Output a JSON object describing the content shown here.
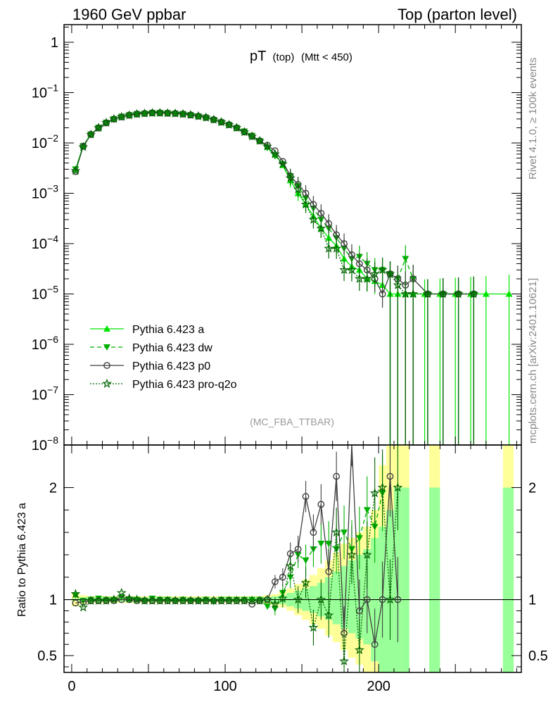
{
  "header": {
    "left": "1960 GeV ppbar",
    "right": "Top (parton level)"
  },
  "side_labels": {
    "rivet": "Rivet 4.1.0, ≥ 100k events",
    "mcplots": "mcplots.cern.ch [arXiv:2401.10621]"
  },
  "chart_data": {
    "type": "line",
    "title_main": "pT",
    "title_sub": "(top)",
    "title_cut": "(Mtt < 450)",
    "analysis_tag": "(MC_FBA_TTBAR)",
    "xlabel": "",
    "ylabel_ratio": "Ratio to Pythia 6.423 a",
    "xlim": [
      -5,
      293
    ],
    "main_ylim_log10": [
      -8,
      0.35
    ],
    "ratio_ylim": [
      0.35,
      2.38
    ],
    "x_ticks": [
      "0",
      "100",
      "200"
    ],
    "main_y_ticks": [
      "1",
      "10^-1",
      "10^-2",
      "10^-3",
      "10^-4",
      "10^-5",
      "10^-6",
      "10^-7",
      "10^-8"
    ],
    "ratio_y_ticks": [
      "0.5",
      "1",
      "2"
    ],
    "band_edges": [
      0,
      5,
      10,
      15,
      20,
      25,
      30,
      35,
      40,
      45,
      50,
      55,
      60,
      65,
      70,
      75,
      80,
      85,
      90,
      95,
      100,
      105,
      110,
      115,
      120,
      125,
      130,
      135,
      140,
      145,
      150,
      155,
      160,
      165,
      170,
      175,
      180,
      185,
      190,
      195,
      200,
      205,
      210,
      215,
      220
    ],
    "band_green_lo": [
      0.99,
      0.98,
      0.98,
      0.98,
      0.98,
      0.98,
      0.98,
      0.98,
      0.98,
      0.98,
      0.98,
      0.98,
      0.98,
      0.98,
      0.98,
      0.98,
      0.98,
      0.98,
      0.98,
      0.98,
      0.98,
      0.98,
      0.98,
      0.98,
      0.98,
      0.98,
      0.97,
      0.96,
      0.94,
      0.92,
      0.9,
      0.88,
      0.85,
      0.82,
      0.78,
      0.74,
      0.7,
      0.65,
      0.6,
      0.45,
      0.35,
      0.35,
      0.35,
      0.35
    ],
    "band_green_hi": [
      1.01,
      1.02,
      1.02,
      1.02,
      1.02,
      1.02,
      1.02,
      1.02,
      1.02,
      1.02,
      1.02,
      1.02,
      1.02,
      1.02,
      1.02,
      1.02,
      1.02,
      1.02,
      1.02,
      1.02,
      1.02,
      1.02,
      1.02,
      1.02,
      1.02,
      1.02,
      1.03,
      1.04,
      1.06,
      1.08,
      1.1,
      1.12,
      1.15,
      1.2,
      1.25,
      1.3,
      1.35,
      1.4,
      1.45,
      1.55,
      1.65,
      1.8,
      2.0,
      2.0
    ],
    "band_yellow_lo": [
      0.94,
      0.96,
      0.97,
      0.97,
      0.97,
      0.97,
      0.97,
      0.97,
      0.97,
      0.97,
      0.97,
      0.97,
      0.97,
      0.97,
      0.97,
      0.97,
      0.97,
      0.97,
      0.97,
      0.97,
      0.97,
      0.97,
      0.97,
      0.97,
      0.97,
      0.96,
      0.95,
      0.93,
      0.9,
      0.86,
      0.82,
      0.78,
      0.74,
      0.68,
      0.62,
      0.55,
      0.48,
      0.42,
      0.35,
      0.35,
      0.35,
      0.35,
      0.35,
      0.35
    ],
    "band_yellow_hi": [
      1.06,
      1.04,
      1.03,
      1.03,
      1.03,
      1.03,
      1.03,
      1.03,
      1.03,
      1.03,
      1.03,
      1.03,
      1.03,
      1.03,
      1.03,
      1.03,
      1.03,
      1.03,
      1.03,
      1.03,
      1.03,
      1.03,
      1.03,
      1.03,
      1.03,
      1.04,
      1.05,
      1.07,
      1.1,
      1.14,
      1.18,
      1.22,
      1.28,
      1.35,
      1.42,
      1.5,
      1.55,
      1.6,
      1.65,
      1.8,
      2.2,
      2.38,
      2.38,
      2.38
    ],
    "extra_bands": [
      {
        "x0": 233,
        "x1": 240,
        "green_lo": 0.35,
        "green_hi": 2.0,
        "yellow_hi": 2.38
      },
      {
        "x0": 281,
        "x1": 288,
        "green_lo": 0.35,
        "green_hi": 2.0,
        "yellow_hi": 2.38
      }
    ],
    "series": [
      {
        "name": "Pythia 6.423 a",
        "color": "#00e600",
        "marker": "triangle-up",
        "dash": "",
        "x": [
          2.5,
          7.5,
          12.5,
          17.5,
          22.5,
          27.5,
          32.5,
          37.5,
          42.5,
          47.5,
          52.5,
          57.5,
          62.5,
          67.5,
          72.5,
          77.5,
          82.5,
          87.5,
          92.5,
          97.5,
          102.5,
          107.5,
          112.5,
          117.5,
          122.5,
          127.5,
          132.5,
          137.5,
          142.5,
          147.5,
          152.5,
          157.5,
          162.5,
          167.5,
          172.5,
          177.5,
          182.5,
          187.5,
          192.5,
          197.5,
          202.5,
          207.5,
          212.5,
          217.5,
          222.5,
          230,
          240,
          250,
          260,
          270,
          285
        ],
        "y": [
          0.003,
          0.0088,
          0.015,
          0.02,
          0.0255,
          0.03,
          0.033,
          0.036,
          0.038,
          0.039,
          0.0395,
          0.04,
          0.0395,
          0.039,
          0.038,
          0.0365,
          0.0345,
          0.032,
          0.0295,
          0.026,
          0.023,
          0.02,
          0.017,
          0.014,
          0.011,
          0.0085,
          0.006,
          0.0036,
          0.0018,
          0.001,
          0.0006,
          0.00035,
          0.0002,
          0.00013,
          9e-05,
          5e-05,
          3.5e-05,
          3e-05,
          2e-05,
          1.8e-05,
          1.5e-05,
          1e-05,
          1e-05,
          1e-05,
          1e-05,
          1e-05,
          1e-05,
          1e-05,
          1e-05,
          1e-05,
          1e-05
        ],
        "ratio": []
      },
      {
        "name": "Pythia 6.423 dw",
        "color": "#00b000",
        "marker": "triangle-down",
        "dash": "6,4",
        "x": [
          2.5,
          7.5,
          12.5,
          17.5,
          22.5,
          27.5,
          32.5,
          37.5,
          42.5,
          47.5,
          52.5,
          57.5,
          62.5,
          67.5,
          72.5,
          77.5,
          82.5,
          87.5,
          92.5,
          97.5,
          102.5,
          107.5,
          112.5,
          117.5,
          122.5,
          127.5,
          132.5,
          137.5,
          142.5,
          147.5,
          152.5,
          157.5,
          162.5,
          167.5,
          172.5,
          177.5,
          182.5,
          187.5,
          192.5,
          197.5,
          202.5,
          207.5,
          212.5,
          217.5,
          222.5,
          232,
          242,
          252,
          262
        ],
        "y": [
          0.003,
          0.0087,
          0.0149,
          0.0202,
          0.0255,
          0.03,
          0.0335,
          0.036,
          0.038,
          0.0385,
          0.04,
          0.04,
          0.0395,
          0.0385,
          0.038,
          0.036,
          0.034,
          0.032,
          0.029,
          0.026,
          0.023,
          0.02,
          0.017,
          0.014,
          0.011,
          0.008,
          0.0055,
          0.0038,
          0.0022,
          0.0014,
          0.0008,
          0.0005,
          0.0003,
          0.0002,
          0.00013,
          8e-05,
          5e-05,
          5.5e-05,
          4e-05,
          3e-05,
          3e-05,
          2.5e-05,
          2e-05,
          5e-05,
          2e-05,
          1e-05,
          1e-05,
          1e-05,
          1e-05
        ],
        "ratio_x": [
          2.5,
          7.5,
          12.5,
          17.5,
          22.5,
          27.5,
          32.5,
          37.5,
          42.5,
          47.5,
          52.5,
          57.5,
          62.5,
          67.5,
          72.5,
          77.5,
          82.5,
          87.5,
          92.5,
          97.5,
          102.5,
          107.5,
          112.5,
          117.5,
          122.5,
          127.5,
          132.5,
          137.5,
          142.5,
          147.5,
          152.5,
          157.5,
          162.5,
          167.5,
          172.5,
          177.5,
          182.5,
          187.5,
          192.5,
          197.5,
          202.5
        ],
        "ratio": [
          1.04,
          0.99,
          1.0,
          1.01,
          1.0,
          1.0,
          1.02,
          1.0,
          1.0,
          0.99,
          1.01,
          1.0,
          1.0,
          0.99,
          1.0,
          0.99,
          0.99,
          1.0,
          0.98,
          1.0,
          1.0,
          1.0,
          1.0,
          1.0,
          1.0,
          0.94,
          0.92,
          1.06,
          1.2,
          1.4,
          1.35,
          1.45,
          1.5,
          1.5,
          1.45,
          1.6,
          1.45,
          1.55,
          1.8,
          1.65,
          1.95
        ]
      },
      {
        "name": "Pythia 6.423 p0",
        "color": "#404040",
        "marker": "circle-open",
        "dash": "",
        "x": [
          2.5,
          7.5,
          12.5,
          17.5,
          22.5,
          27.5,
          32.5,
          37.5,
          42.5,
          47.5,
          52.5,
          57.5,
          62.5,
          67.5,
          72.5,
          77.5,
          82.5,
          87.5,
          92.5,
          97.5,
          102.5,
          107.5,
          112.5,
          117.5,
          122.5,
          127.5,
          132.5,
          137.5,
          142.5,
          147.5,
          152.5,
          157.5,
          162.5,
          167.5,
          172.5,
          177.5,
          182.5,
          187.5,
          192.5,
          197.5,
          202.5,
          207.5,
          212.5,
          217.5,
          222.5,
          232,
          242,
          252,
          262
        ],
        "y": [
          0.0027,
          0.0086,
          0.0147,
          0.0198,
          0.025,
          0.0297,
          0.0328,
          0.0355,
          0.0375,
          0.0385,
          0.0395,
          0.0395,
          0.039,
          0.0385,
          0.0375,
          0.036,
          0.034,
          0.032,
          0.029,
          0.026,
          0.023,
          0.02,
          0.0165,
          0.0135,
          0.011,
          0.009,
          0.007,
          0.0043,
          0.0022,
          0.0015,
          0.001,
          0.0006,
          0.0004,
          0.00025,
          0.00015,
          0.0001,
          6e-05,
          4e-05,
          3e-05,
          2e-05,
          1e-05,
          2.5e-05,
          2e-05,
          1.5e-05,
          2e-05,
          1e-05,
          1e-05,
          1e-05,
          1e-05
        ],
        "ratio_x": [
          2.5,
          7.5,
          12.5,
          17.5,
          22.5,
          27.5,
          32.5,
          37.5,
          42.5,
          47.5,
          52.5,
          57.5,
          62.5,
          67.5,
          72.5,
          77.5,
          82.5,
          87.5,
          92.5,
          97.5,
          102.5,
          107.5,
          112.5,
          117.5,
          122.5,
          127.5,
          132.5,
          137.5,
          142.5,
          147.5,
          152.5,
          157.5,
          162.5,
          167.5,
          172.5,
          177.5,
          182.5,
          187.5,
          192.5,
          197.5,
          202.5,
          207.5,
          212.5
        ],
        "ratio": [
          0.97,
          0.98,
          0.99,
          0.99,
          0.99,
          0.99,
          1.0,
          1.0,
          0.99,
          0.99,
          0.99,
          0.99,
          0.99,
          0.99,
          0.99,
          0.99,
          0.99,
          0.99,
          0.99,
          0.99,
          0.99,
          0.99,
          0.99,
          0.96,
          0.99,
          1.0,
          1.16,
          1.2,
          1.41,
          1.45,
          1.92,
          1.6,
          1.85,
          1.25,
          2.1,
          0.7,
          2.45,
          0.9,
          1.0,
          0.6,
          1.0,
          2.1,
          1.0
        ]
      },
      {
        "name": "Pythia 6.423 pro-q2o",
        "color": "#006400",
        "marker": "star",
        "dash": "2,2",
        "x": [
          2.5,
          7.5,
          12.5,
          17.5,
          22.5,
          27.5,
          32.5,
          37.5,
          42.5,
          47.5,
          52.5,
          57.5,
          62.5,
          67.5,
          72.5,
          77.5,
          82.5,
          87.5,
          92.5,
          97.5,
          102.5,
          107.5,
          112.5,
          117.5,
          122.5,
          127.5,
          132.5,
          137.5,
          142.5,
          147.5,
          152.5,
          157.5,
          162.5,
          167.5,
          172.5,
          177.5,
          182.5,
          187.5,
          192.5,
          197.5,
          202.5,
          207.5,
          212.5,
          217.5,
          222.5,
          232,
          242,
          252,
          262
        ],
        "y": [
          0.0028,
          0.0083,
          0.0147,
          0.02,
          0.0252,
          0.03,
          0.033,
          0.0355,
          0.0375,
          0.0385,
          0.0395,
          0.0395,
          0.039,
          0.0385,
          0.0375,
          0.036,
          0.034,
          0.032,
          0.029,
          0.026,
          0.023,
          0.02,
          0.0165,
          0.0135,
          0.011,
          0.0085,
          0.006,
          0.0038,
          0.002,
          0.0012,
          0.0006,
          0.0003,
          0.0002,
          8e-05,
          8e-05,
          3e-05,
          3e-05,
          2e-05,
          2e-05,
          2.5e-05,
          3e-05,
          2.5e-05,
          1.5e-05,
          1e-05,
          1e-05,
          1e-05,
          1e-05,
          1e-05,
          1e-05
        ],
        "ratio_x": [
          2.5,
          7.5,
          12.5,
          17.5,
          22.5,
          27.5,
          32.5,
          37.5,
          42.5,
          47.5,
          52.5,
          57.5,
          62.5,
          67.5,
          72.5,
          77.5,
          82.5,
          87.5,
          92.5,
          97.5,
          102.5,
          107.5,
          112.5,
          117.5,
          122.5,
          127.5,
          132.5,
          137.5,
          142.5,
          147.5,
          152.5,
          157.5,
          162.5,
          167.5,
          172.5,
          177.5,
          182.5,
          187.5,
          192.5,
          197.5,
          202.5,
          207.5,
          212.5
        ],
        "ratio": [
          1.05,
          0.93,
          0.99,
          0.99,
          0.99,
          1.0,
          1.06,
          1.01,
          1.0,
          0.99,
          0.99,
          0.99,
          0.99,
          0.99,
          0.99,
          0.99,
          0.99,
          0.99,
          0.99,
          0.99,
          0.99,
          0.99,
          0.99,
          0.99,
          0.99,
          1.0,
          0.96,
          1.01,
          1.3,
          1.0,
          1.15,
          0.75,
          1.0,
          0.86,
          1.6,
          0.45,
          1.4,
          0.55,
          1.4,
          1.95,
          2.0,
          1.0,
          2.0
        ]
      }
    ]
  }
}
